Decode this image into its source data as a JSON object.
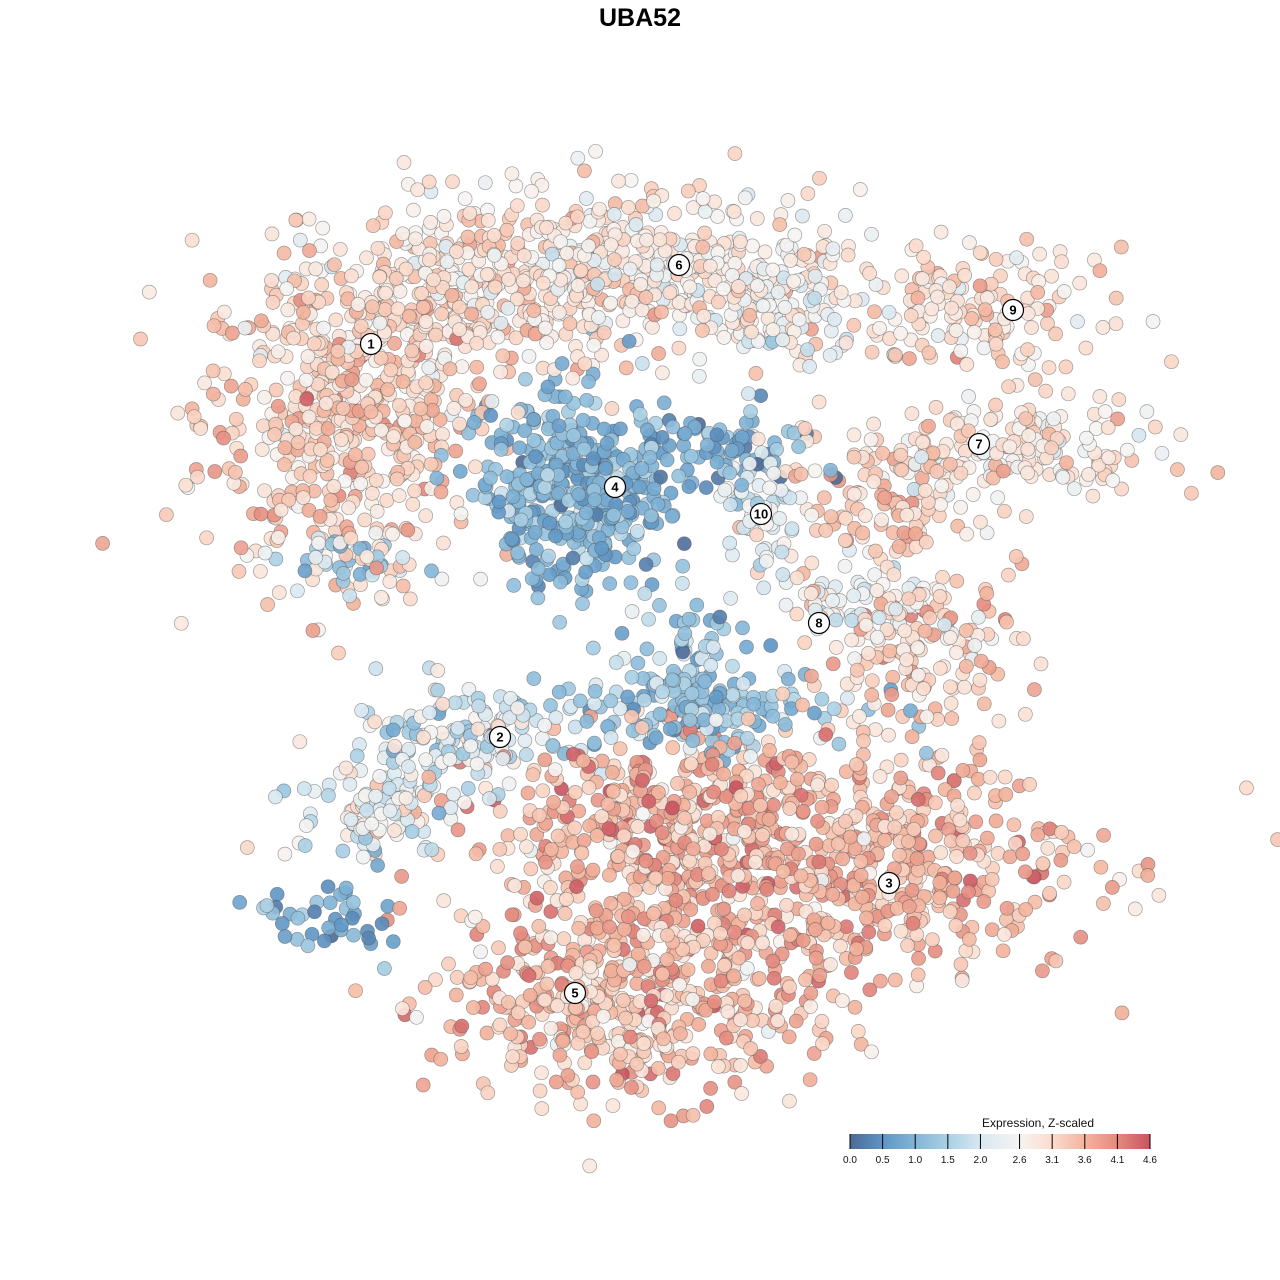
{
  "chart_data": {
    "type": "scatter",
    "title": "UBA52",
    "xlabel": "",
    "ylabel": "",
    "xlim": [
      -48,
      48
    ],
    "ylim": [
      -48,
      48
    ],
    "grid": false,
    "point_encoding": "color = expression (Z-scaled)",
    "point_groups": [
      {
        "cluster": "1",
        "center": [
          -31,
          22
        ],
        "spread": [
          7,
          8
        ],
        "n": 500,
        "mean_expr": 3.2,
        "sd_expr": 0.4
      },
      {
        "cluster": "1",
        "center": [
          -20,
          34
        ],
        "spread": [
          8,
          5
        ],
        "n": 300,
        "mean_expr": 3.0,
        "sd_expr": 0.4
      },
      {
        "cluster": "1",
        "center": [
          -30,
          8
        ],
        "spread": [
          3,
          1.5
        ],
        "n": 40,
        "mean_expr": 1.4,
        "sd_expr": 0.5
      },
      {
        "cluster": "6",
        "center": [
          -1,
          37
        ],
        "spread": [
          11,
          4
        ],
        "n": 450,
        "mean_expr": 2.8,
        "sd_expr": 0.4
      },
      {
        "cluster": "6",
        "center": [
          13,
          33
        ],
        "spread": [
          4,
          3
        ],
        "n": 100,
        "mean_expr": 2.5,
        "sd_expr": 0.4
      },
      {
        "cluster": "4",
        "center": [
          -7.5,
          15
        ],
        "spread": [
          4.5,
          4.5
        ],
        "n": 400,
        "mean_expr": 1.0,
        "sd_expr": 0.4
      },
      {
        "cluster": "4",
        "center": [
          7,
          19
        ],
        "spread": [
          5,
          2
        ],
        "n": 80,
        "mean_expr": 0.8,
        "sd_expr": 0.4
      },
      {
        "cluster": "10",
        "center": [
          11,
          12.5
        ],
        "spread": [
          2,
          3
        ],
        "n": 60,
        "mean_expr": 2.2,
        "sd_expr": 0.4
      },
      {
        "cluster": "9",
        "center": [
          33,
          33
        ],
        "spread": [
          6,
          3
        ],
        "n": 150,
        "mean_expr": 3.0,
        "sd_expr": 0.4
      },
      {
        "cluster": "7",
        "center": [
          35,
          19
        ],
        "spread": [
          8,
          3
        ],
        "n": 200,
        "mean_expr": 2.9,
        "sd_expr": 0.4
      },
      {
        "cluster": "7",
        "center": [
          23,
          13
        ],
        "spread": [
          3.5,
          3
        ],
        "n": 80,
        "mean_expr": 3.3,
        "sd_expr": 0.4
      },
      {
        "cluster": "8",
        "center": [
          27,
          0
        ],
        "spread": [
          5,
          3.5
        ],
        "n": 150,
        "mean_expr": 3.2,
        "sd_expr": 0.45
      },
      {
        "cluster": "8",
        "center": [
          20,
          5
        ],
        "spread": [
          4,
          2
        ],
        "n": 60,
        "mean_expr": 2.5,
        "sd_expr": 0.5
      },
      {
        "cluster": "bridge",
        "center": [
          4,
          -2
        ],
        "spread": [
          4,
          4
        ],
        "n": 80,
        "mean_expr": 1.3,
        "sd_expr": 0.5
      },
      {
        "cluster": "2",
        "center": [
          -20,
          -10
        ],
        "spread": [
          5,
          2.5
        ],
        "n": 150,
        "mean_expr": 2.0,
        "sd_expr": 0.5
      },
      {
        "cluster": "2",
        "center": [
          -27,
          -17
        ],
        "spread": [
          4,
          2.5
        ],
        "n": 100,
        "mean_expr": 2.3,
        "sd_expr": 0.6
      },
      {
        "cluster": "2",
        "center": [
          5,
          -7
        ],
        "spread": [
          8,
          2
        ],
        "n": 150,
        "mean_expr": 1.3,
        "sd_expr": 0.5
      },
      {
        "cluster": "2",
        "center": [
          -32,
          -28
        ],
        "spread": [
          3,
          2
        ],
        "n": 40,
        "mean_expr": 0.8,
        "sd_expr": 0.4
      },
      {
        "cluster": "3",
        "center": [
          20,
          -22
        ],
        "spread": [
          12,
          6
        ],
        "n": 600,
        "mean_expr": 3.5,
        "sd_expr": 0.4
      },
      {
        "cluster": "3",
        "center": [
          0,
          -19
        ],
        "spread": [
          9,
          5
        ],
        "n": 400,
        "mean_expr": 3.6,
        "sd_expr": 0.45
      },
      {
        "cluster": "5",
        "center": [
          -3,
          -36
        ],
        "spread": [
          9,
          5
        ],
        "n": 500,
        "mean_expr": 3.5,
        "sd_expr": 0.45
      }
    ],
    "cluster_labels": [
      {
        "label": "1",
        "x": -27.9,
        "y": 29.6
      },
      {
        "label": "2",
        "x": -15.0,
        "y": -9.7
      },
      {
        "label": "3",
        "x": 23.9,
        "y": -24.3
      },
      {
        "label": "4",
        "x": -3.5,
        "y": 15.3
      },
      {
        "label": "5",
        "x": -7.5,
        "y": -35.3
      },
      {
        "label": "6",
        "x": 2.9,
        "y": 37.5
      },
      {
        "label": "7",
        "x": 32.9,
        "y": 19.6
      },
      {
        "label": "8",
        "x": 16.9,
        "y": 1.7
      },
      {
        "label": "9",
        "x": 36.3,
        "y": 33.0
      },
      {
        "label": "10",
        "x": 11.1,
        "y": 12.6
      }
    ],
    "legend": {
      "title": "Expression, Z-scaled",
      "placement": "bottom-right",
      "ticks": [
        "0.0",
        "0.5",
        "1.0",
        "1.5",
        "2.0",
        "2.6",
        "3.1",
        "3.6",
        "4.1",
        "4.6"
      ],
      "range": [
        0.0,
        4.6
      ],
      "colors": [
        "#4b6a97",
        "#5e95c4",
        "#82b5d7",
        "#aad0e4",
        "#d9e8f1",
        "#f6f4f2",
        "#fbdccd",
        "#f3b49d",
        "#e48a7e",
        "#c9535f"
      ]
    }
  }
}
